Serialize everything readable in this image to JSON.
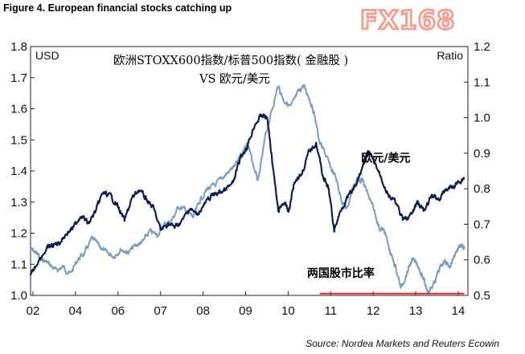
{
  "figure_title": "Figure 4. European financial stocks catching up",
  "logo_text": "FX168",
  "source_text": "Source: Nordea Markets and Reuters Ecowin",
  "colors": {
    "eurusd_line": "#0f1e4d",
    "ratio_line": "#7c9bbd",
    "reference_line": "#e8262a",
    "logo": "#f0a294"
  },
  "chart_data": {
    "type": "line",
    "title_line1": "欧洲STOXX600指数/标普500指数(   金融股   )",
    "title_line2": "VS 欧元/美元",
    "left_axis": {
      "label": "USD",
      "min": 1.0,
      "max": 1.8,
      "ticks": [
        "1.0",
        "1.1",
        "1.2",
        "1.3",
        "1.4",
        "1.5",
        "1.6",
        "1.7",
        "1.8"
      ]
    },
    "right_axis": {
      "label": "Ratio",
      "min": 0.5,
      "max": 1.2,
      "ticks": [
        "0.5",
        "0.6",
        "0.7",
        "0.8",
        "0.9",
        "1.0",
        "1.1",
        "1.2"
      ]
    },
    "x_axis": {
      "min": 2002,
      "max": 2014.1,
      "ticks": [
        "02",
        "04",
        "06",
        "07",
        "08",
        "09",
        "10",
        "11",
        "12",
        "13",
        "14"
      ]
    },
    "series": [
      {
        "name": "欧元/美元",
        "axis": "left",
        "x": [
          2002.0,
          2002.2,
          2002.45,
          2002.6,
          2002.8,
          2003.0,
          2003.2,
          2003.4,
          2003.6,
          2003.8,
          2004.0,
          2004.2,
          2004.4,
          2004.6,
          2004.8,
          2005.0,
          2005.2,
          2005.4,
          2005.6,
          2005.8,
          2006.0,
          2006.2,
          2006.4,
          2006.6,
          2006.8,
          2007.0,
          2007.2,
          2007.4,
          2007.6,
          2007.8,
          2008.0,
          2008.2,
          2008.4,
          2008.55,
          2008.7,
          2008.85,
          2009.0,
          2009.15,
          2009.3,
          2009.5,
          2009.7,
          2009.9,
          2010.1,
          2010.25,
          2010.4,
          2010.6,
          2010.8,
          2011.0,
          2011.2,
          2011.35,
          2011.5,
          2011.7,
          2011.9,
          2012.1,
          2012.3,
          2012.55,
          2012.7,
          2012.9,
          2013.1,
          2013.3,
          2013.5,
          2013.7,
          2013.9,
          2014.0
        ],
        "y": [
          1.06,
          1.11,
          1.15,
          1.16,
          1.17,
          1.2,
          1.22,
          1.26,
          1.23,
          1.27,
          1.33,
          1.32,
          1.29,
          1.24,
          1.31,
          1.34,
          1.31,
          1.28,
          1.21,
          1.23,
          1.22,
          1.24,
          1.28,
          1.26,
          1.29,
          1.32,
          1.33,
          1.34,
          1.36,
          1.44,
          1.48,
          1.55,
          1.58,
          1.57,
          1.42,
          1.27,
          1.3,
          1.27,
          1.37,
          1.39,
          1.46,
          1.49,
          1.38,
          1.34,
          1.21,
          1.28,
          1.32,
          1.35,
          1.42,
          1.46,
          1.43,
          1.38,
          1.32,
          1.3,
          1.24,
          1.26,
          1.3,
          1.27,
          1.32,
          1.31,
          1.34,
          1.35,
          1.37,
          1.38
        ]
      },
      {
        "name": "两国股市比率",
        "axis": "right",
        "x": [
          2002.0,
          2002.15,
          2002.3,
          2002.5,
          2002.7,
          2002.9,
          2003.1,
          2003.3,
          2003.5,
          2003.7,
          2003.9,
          2004.1,
          2004.3,
          2004.5,
          2004.7,
          2004.9,
          2005.1,
          2005.3,
          2005.5,
          2005.7,
          2005.9,
          2006.1,
          2006.3,
          2006.5,
          2006.7,
          2006.9,
          2007.1,
          2007.3,
          2007.5,
          2007.7,
          2007.9,
          2008.0,
          2008.15,
          2008.3,
          2008.5,
          2008.7,
          2008.85,
          2009.0,
          2009.2,
          2009.4,
          2009.55,
          2009.7,
          2009.85,
          2010.0,
          2010.15,
          2010.3,
          2010.45,
          2010.6,
          2010.75,
          2010.9,
          2011.05,
          2011.2,
          2011.35,
          2011.5,
          2011.65,
          2011.8,
          2011.95,
          2012.1,
          2012.25,
          2012.4,
          2012.55,
          2012.7,
          2012.85,
          2013.0,
          2013.15,
          2013.3,
          2013.45,
          2013.6,
          2013.75,
          2013.9,
          2014.0
        ],
        "y": [
          0.63,
          0.62,
          0.6,
          0.59,
          0.57,
          0.58,
          0.56,
          0.6,
          0.62,
          0.66,
          0.64,
          0.62,
          0.61,
          0.63,
          0.62,
          0.64,
          0.65,
          0.68,
          0.67,
          0.7,
          0.71,
          0.75,
          0.74,
          0.72,
          0.77,
          0.8,
          0.81,
          0.83,
          0.85,
          0.87,
          0.91,
          0.93,
          0.87,
          0.82,
          0.95,
          1.03,
          1.09,
          1.05,
          1.03,
          1.07,
          1.09,
          1.06,
          1.01,
          0.93,
          0.9,
          0.86,
          0.83,
          0.77,
          0.74,
          0.8,
          0.83,
          0.82,
          0.78,
          0.74,
          0.69,
          0.68,
          0.62,
          0.58,
          0.52,
          0.56,
          0.6,
          0.59,
          0.55,
          0.51,
          0.53,
          0.57,
          0.6,
          0.58,
          0.62,
          0.64,
          0.63
        ]
      }
    ],
    "reference_line": {
      "axis": "right",
      "value": 0.505,
      "x_start": 2010.0,
      "x_end": 2014.0
    },
    "annotations": [
      {
        "text": "欧元/美元",
        "x": 2011.15,
        "y_left": 1.43
      },
      {
        "text": "两国股市比率",
        "x": 2009.65,
        "y_left": 1.06
      }
    ],
    "grid": false,
    "legend": "none"
  }
}
